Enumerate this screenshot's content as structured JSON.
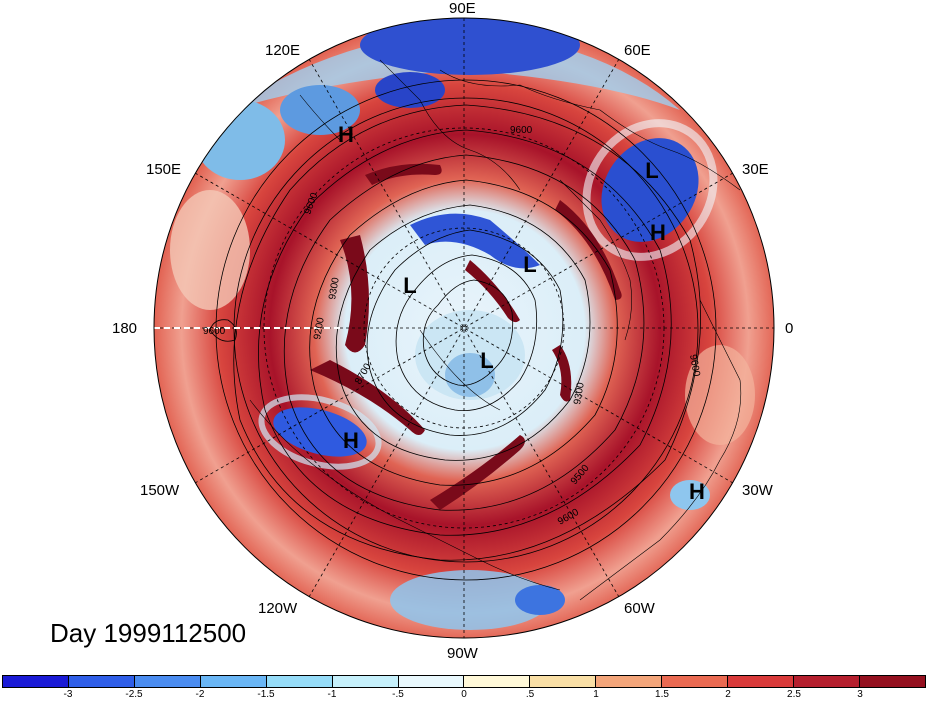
{
  "day_label": "Day 1999112500",
  "longitude_labels": [
    "90E",
    "60E",
    "30E",
    "0",
    "30W",
    "60W",
    "90W",
    "120W",
    "150W",
    "180",
    "150E",
    "120E"
  ],
  "pressure_systems": [
    "H",
    "L",
    "L",
    "H",
    "L",
    "L",
    "H",
    "H"
  ],
  "contour_labels": [
    "9600",
    "9300",
    "9200",
    "8700",
    "9300",
    "9500",
    "9600",
    "9600",
    "9600",
    "9600"
  ],
  "colorbar": {
    "ticks": [
      "-3",
      "-2.5",
      "-2",
      "-1.5",
      "-1",
      "-.5",
      "0",
      ".5",
      "1",
      "1.5",
      "2",
      "2.5",
      "3"
    ],
    "colors": [
      "#1a1ad6",
      "#2f5ee8",
      "#4a8cf0",
      "#6ab6f5",
      "#96dcf8",
      "#c6f0fb",
      "#e9f8fd",
      "#fff8d8",
      "#f9dfa6",
      "#f3a57a",
      "#ea6a52",
      "#d93a3a",
      "#b51f2e",
      "#94101f"
    ]
  },
  "map": {
    "projection": "north polar stereographic",
    "field_colors": {
      "ring": "#a8132a",
      "ring_light": "#e8645a",
      "blue": "#3566d8",
      "pale": "#d6eef8",
      "ocean_base": "#f0a090"
    }
  }
}
